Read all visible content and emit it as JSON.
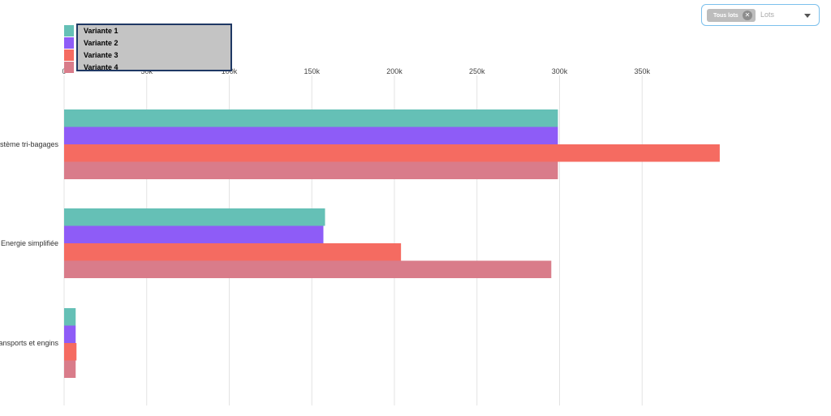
{
  "filter": {
    "chip_label": "Tous lots",
    "placeholder": "Lots",
    "close_icon": "close-icon",
    "dropdown_icon": "chevron-down-icon"
  },
  "chart_data": {
    "type": "bar",
    "orientation": "horizontal",
    "categories": [
      "Système tri-bagages",
      "Energie simplifiée",
      "Transports et engins"
    ],
    "series": [
      {
        "name": "Variante 1",
        "color": "#65c0b6",
        "values": [
          299000,
          158000,
          7000
        ]
      },
      {
        "name": "Variante 2",
        "color": "#8e5cf7",
        "values": [
          299000,
          157000,
          7000
        ]
      },
      {
        "name": "Variante 3",
        "color": "#f56b61",
        "values": [
          397000,
          204000,
          7500
        ]
      },
      {
        "name": "Variante 4",
        "color": "#d97c8a",
        "values": [
          299000,
          295000,
          7000
        ]
      }
    ],
    "xlim": [
      0,
      400000
    ],
    "ticks": [
      {
        "value": 0,
        "label": "0"
      },
      {
        "value": 50000,
        "label": "50k"
      },
      {
        "value": 100000,
        "label": "100k"
      },
      {
        "value": 150000,
        "label": "150k"
      },
      {
        "value": 200000,
        "label": "200k"
      },
      {
        "value": 250000,
        "label": "250k"
      },
      {
        "value": 300000,
        "label": "300k"
      },
      {
        "value": 350000,
        "label": "350k"
      }
    ],
    "grid": true,
    "legend_position": "top-left"
  }
}
